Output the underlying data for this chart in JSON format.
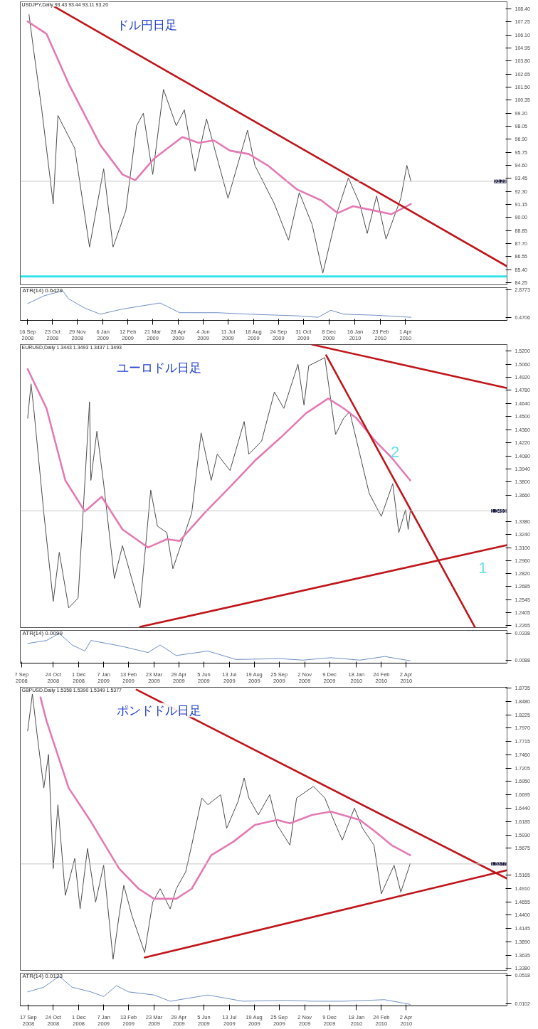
{
  "chart_data": [
    {
      "type": "line",
      "title": "ドル円日足",
      "annotations": [
        "USDJPY,Daily  93.43 93.44 93.11 93.20"
      ],
      "xlim": [
        "2008-09-05",
        "2010-08-30"
      ],
      "ylim": [
        84.07,
        109.03
      ],
      "yticks": [
        {
          "value": 84.25,
          "label": "84.25"
        },
        {
          "value": 85.4,
          "label": "85.40"
        },
        {
          "value": 86.55,
          "label": "86.55"
        },
        {
          "value": 87.7,
          "label": "87.70"
        },
        {
          "value": 88.85,
          "label": "88.85"
        },
        {
          "value": 90.0,
          "label": "90.00"
        },
        {
          "value": 91.15,
          "label": "91.15"
        },
        {
          "value": 92.3,
          "label": "92.30"
        },
        {
          "value": 93.45,
          "label": "93.45"
        },
        {
          "value": 94.6,
          "label": "94.60"
        },
        {
          "value": 95.75,
          "label": "95.75"
        },
        {
          "value": 96.9,
          "label": "96.90"
        },
        {
          "value": 98.05,
          "label": "98.05"
        },
        {
          "value": 99.2,
          "label": "99.20"
        },
        {
          "value": 100.35,
          "label": "100.35"
        },
        {
          "value": 101.5,
          "label": "101.50"
        },
        {
          "value": 102.65,
          "label": "102.65"
        },
        {
          "value": 103.8,
          "label": "103.80"
        },
        {
          "value": 104.95,
          "label": "104.95"
        },
        {
          "value": 106.1,
          "label": "106.10"
        },
        {
          "value": 107.25,
          "label": "107.25"
        },
        {
          "value": 108.4,
          "label": "108.40"
        }
      ],
      "tick_labels": "y",
      "ref_lines": [
        {
          "axis": "y",
          "value": 93.2,
          "label": "93.20",
          "color": "#c8c8c8"
        },
        {
          "axis": "y",
          "value": 84.8,
          "label": null,
          "color": "#33e3ea"
        }
      ],
      "series": [
        {
          "color": "#4d4d4d",
          "x": [
            "2008-09-18",
            "2008-09-25",
            "2008-10-07",
            "2008-10-24",
            "2008-10-31",
            "2008-11-25",
            "2008-12-17",
            "2009-01-07",
            "2009-01-21",
            "2009-02-09",
            "2009-02-25",
            "2009-03-07",
            "2009-03-21",
            "2009-04-06",
            "2009-04-25",
            "2009-05-07",
            "2009-05-23",
            "2009-06-09",
            "2009-06-25",
            "2009-07-11",
            "2009-08-09",
            "2009-08-20",
            "2009-09-18",
            "2009-10-09",
            "2009-10-25",
            "2009-11-13",
            "2009-11-29",
            "2009-12-21",
            "2010-01-06",
            "2010-01-23",
            "2010-02-03",
            "2010-02-17",
            "2010-03-03",
            "2010-03-25",
            "2010-04-03",
            "2010-04-09"
          ],
          "values": [
            107.9,
            104.7,
            99.5,
            91.2,
            99.0,
            96.1,
            87.4,
            94.3,
            87.4,
            90.6,
            98.1,
            99.2,
            93.8,
            101.3,
            98.1,
            99.5,
            94.1,
            98.7,
            95.2,
            91.7,
            97.7,
            94.6,
            91.2,
            88.0,
            92.2,
            89.4,
            85.1,
            90.6,
            93.5,
            91.2,
            88.6,
            91.9,
            88.1,
            91.7,
            94.6,
            93.2
          ]
        },
        {
          "color": "#e47ab4",
          "x": [
            "2008-09-16",
            "2008-10-14",
            "2008-11-16",
            "2009-01-02",
            "2009-02-04",
            "2009-02-23",
            "2009-03-23",
            "2009-05-04",
            "2009-05-28",
            "2009-06-20",
            "2009-07-14",
            "2009-08-11",
            "2009-09-08",
            "2009-10-21",
            "2009-11-27",
            "2009-12-21",
            "2010-01-13",
            "2010-02-15",
            "2010-03-11",
            "2010-04-09"
          ],
          "values": [
            107.3,
            106.2,
            101.8,
            96.4,
            93.8,
            93.3,
            95.2,
            97.1,
            96.6,
            96.8,
            95.9,
            95.6,
            94.6,
            92.5,
            91.5,
            90.4,
            91.0,
            90.6,
            90.3,
            91.2
          ]
        },
        {
          "color": "#c0161b",
          "x": [
            "2008-10-24",
            "2010-08-30"
          ],
          "values": [
            108.66,
            85.7
          ]
        }
      ]
    },
    {
      "type": "line",
      "title": "ATR(14) 0.6429",
      "xlim": [
        "2008-09-05",
        "2010-08-30"
      ],
      "ylim": [
        0.23,
        3.09
      ],
      "yticks": [
        0.4706,
        2.8773
      ],
      "xticks": [
        {
          "value": "2008-09-16",
          "label": "16 Sep 2008"
        },
        {
          "value": "2008-10-23",
          "label": "23 Oct 2008"
        },
        {
          "value": "2008-11-29",
          "label": "29 Nov 2008"
        },
        {
          "value": "2009-01-06",
          "label": "6 Jan 2009"
        },
        {
          "value": "2009-02-12",
          "label": "12 Feb 2009"
        },
        {
          "value": "2009-03-21",
          "label": "21 Mar 2009"
        },
        {
          "value": "2009-04-28",
          "label": "28 Apr 2009"
        },
        {
          "value": "2009-06-04",
          "label": "4 Jun 2009"
        },
        {
          "value": "2009-07-11",
          "label": "11 Jul 2009"
        },
        {
          "value": "2009-08-18",
          "label": "18 Aug 2009"
        },
        {
          "value": "2009-09-24",
          "label": "24 Sep 2009"
        },
        {
          "value": "2009-10-31",
          "label": "31 Oct 2009"
        },
        {
          "value": "2009-12-08",
          "label": "8 Dec 2009"
        },
        {
          "value": "2010-01-16",
          "label": "16 Jan 2010"
        },
        {
          "value": "2010-02-23",
          "label": "23 Feb 2010"
        },
        {
          "value": "2010-04-01",
          "label": "1 Apr 2010"
        }
      ],
      "series": [
        {
          "color": "#6f8fc4",
          "x": [
            "2008-09-16",
            "2008-10-10",
            "2008-11-07",
            "2008-11-16",
            "2008-12-10",
            "2009-01-02",
            "2009-02-04",
            "2009-04-01",
            "2009-04-30",
            "2009-06-25",
            "2009-08-11",
            "2009-10-21",
            "2009-11-22",
            "2009-12-11",
            "2009-12-30",
            "2010-02-15",
            "2010-04-09"
          ],
          "values": [
            1.7,
            2.37,
            2.82,
            2.1,
            1.3,
            0.77,
            1.22,
            1.75,
            0.9,
            0.9,
            0.77,
            0.63,
            0.5,
            1.11,
            0.77,
            0.68,
            0.5
          ]
        }
      ]
    },
    {
      "type": "line",
      "title": "ユーロドル日足",
      "annotations": [
        "EURUSD,Daily  1.3443 1.3493 1.3437 1.3493",
        "1",
        "2"
      ],
      "xlim": [
        "2008-09-05",
        "2010-08-30"
      ],
      "ylim": [
        1.2246,
        1.527
      ],
      "yticks": [
        {
          "value": 1.2265,
          "label": "1.2265"
        },
        {
          "value": 1.2405,
          "label": "1.2405"
        },
        {
          "value": 1.2545,
          "label": "1.2545"
        },
        {
          "value": 1.2685,
          "label": "1.2685"
        },
        {
          "value": 1.282,
          "label": "1.2820"
        },
        {
          "value": 1.296,
          "label": "1.2960"
        },
        {
          "value": 1.31,
          "label": "1.3100"
        },
        {
          "value": 1.324,
          "label": "1.3240"
        },
        {
          "value": 1.338,
          "label": "1.3380"
        },
        {
          "value": 1.366,
          "label": "1.3660"
        },
        {
          "value": 1.38,
          "label": "1.3800"
        },
        {
          "value": 1.394,
          "label": "1.3940"
        },
        {
          "value": 1.408,
          "label": "1.4080"
        },
        {
          "value": 1.422,
          "label": "1.4220"
        },
        {
          "value": 1.436,
          "label": "1.4360"
        },
        {
          "value": 1.45,
          "label": "1.4500"
        },
        {
          "value": 1.464,
          "label": "1.4640"
        },
        {
          "value": 1.478,
          "label": "1.4780"
        },
        {
          "value": 1.492,
          "label": "1.4920"
        },
        {
          "value": 1.506,
          "label": "1.5060"
        },
        {
          "value": 1.52,
          "label": "1.5200"
        }
      ],
      "tick_labels": "y",
      "ref_lines": [
        {
          "axis": "y",
          "value": 1.3493,
          "label": "1.3493",
          "color": "#c8c8c8"
        }
      ],
      "series": [
        {
          "color": "#4d4d4d",
          "x": [
            "2008-09-16",
            "2008-09-21",
            "2008-09-25",
            "2008-10-10",
            "2008-10-24",
            "2008-11-02",
            "2008-11-16",
            "2008-11-30",
            "2008-12-17",
            "2008-12-19",
            "2008-12-28",
            "2009-01-07",
            "2009-01-23",
            "2009-02-04",
            "2009-03-02",
            "2009-03-18",
            "2009-03-28",
            "2009-04-11",
            "2009-04-20",
            "2009-05-18",
            "2009-06-01",
            "2009-06-16",
            "2009-06-25",
            "2009-07-14",
            "2009-08-04",
            "2009-08-11",
            "2009-08-30",
            "2009-09-18",
            "2009-10-02",
            "2009-10-23",
            "2009-11-01",
            "2009-11-08",
            "2009-12-02",
            "2009-12-18",
            "2009-12-30",
            "2010-01-08",
            "2010-01-23",
            "2010-02-06",
            "2010-02-24",
            "2010-03-13",
            "2010-03-22",
            "2010-04-01",
            "2010-04-05",
            "2010-04-08"
          ],
          "values": [
            1.4483,
            1.485,
            1.4588,
            1.347,
            1.2526,
            1.305,
            1.2456,
            1.256,
            1.4658,
            1.3819,
            1.4344,
            1.3784,
            1.277,
            1.312,
            1.2456,
            1.3714,
            1.333,
            1.326,
            1.2875,
            1.347,
            1.4326,
            1.3819,
            1.4099,
            1.3924,
            1.4448,
            1.4099,
            1.4239,
            1.4763,
            1.4588,
            1.506,
            1.4623,
            1.5043,
            1.513,
            1.4309,
            1.4483,
            1.4553,
            1.4099,
            1.3679,
            1.3434,
            1.3784,
            1.326,
            1.3505,
            1.3295,
            1.3487
          ]
        },
        {
          "color": "#e47ab4",
          "x": [
            "2008-09-16",
            "2008-10-14",
            "2008-11-11",
            "2008-12-10",
            "2009-01-04",
            "2009-02-04",
            "2009-03-14",
            "2009-04-11",
            "2009-04-30",
            "2009-06-06",
            "2009-07-14",
            "2009-08-20",
            "2009-09-27",
            "2009-11-04",
            "2009-12-07",
            "2009-12-30",
            "2010-01-18",
            "2010-02-15",
            "2010-03-11",
            "2010-04-08"
          ],
          "values": [
            1.5008,
            1.4588,
            1.3819,
            1.3487,
            1.3644,
            1.3295,
            1.3102,
            1.319,
            1.3172,
            1.347,
            1.3749,
            1.4029,
            1.4274,
            1.4536,
            1.4693,
            1.4588,
            1.4483,
            1.4239,
            1.4064,
            1.3819
          ]
        },
        {
          "color": "#c0161b",
          "x": [
            "2009-11-13",
            "2010-08-30"
          ],
          "values": [
            1.527,
            1.4805
          ]
        },
        {
          "color": "#c0161b",
          "x": [
            "2009-12-04",
            "2010-07-13"
          ],
          "values": [
            1.5155,
            1.2253
          ]
        },
        {
          "color": "#c0161b",
          "x": [
            "2009-03-02",
            "2010-08-30"
          ],
          "values": [
            1.2253,
            1.3127
          ]
        }
      ]
    },
    {
      "type": "line",
      "title": "ATR(14) 0.0099",
      "xlim": [
        "2008-09-05",
        "2010-08-30"
      ],
      "ylim": [
        0.006,
        0.0366
      ],
      "yticks": [
        0.0088,
        0.0338
      ],
      "xticks": [
        {
          "value": "2008-09-07",
          "label": "7 Sep 2008"
        },
        {
          "value": "2008-10-24",
          "label": "24 Oct 2008"
        },
        {
          "value": "2008-12-01",
          "label": "1 Dec 2008"
        },
        {
          "value": "2009-01-07",
          "label": "7 Jan 2009"
        },
        {
          "value": "2009-02-13",
          "label": "13 Feb 2009"
        },
        {
          "value": "2009-03-23",
          "label": "23 Mar 2009"
        },
        {
          "value": "2009-04-29",
          "label": "29 Apr 2009"
        },
        {
          "value": "2009-06-05",
          "label": "5 Jun 2009"
        },
        {
          "value": "2009-07-13",
          "label": "13 Jul 2009"
        },
        {
          "value": "2009-08-19",
          "label": "19 Aug 2009"
        },
        {
          "value": "2009-09-25",
          "label": "25 Sep 2009"
        },
        {
          "value": "2009-11-02",
          "label": "2 Nov 2009"
        },
        {
          "value": "2009-12-09",
          "label": "9 Dec 2009"
        },
        {
          "value": "2010-01-18",
          "label": "18 Jan 2010"
        },
        {
          "value": "2010-02-24",
          "label": "24 Feb 2010"
        },
        {
          "value": "2010-04-02",
          "label": "2 Apr 2010"
        }
      ],
      "series": [
        {
          "color": "#6f8fc4",
          "x": [
            "2008-09-16",
            "2008-10-14",
            "2008-11-02",
            "2008-11-21",
            "2008-12-10",
            "2008-12-19",
            "2009-01-12",
            "2009-02-04",
            "2009-03-14",
            "2009-04-01",
            "2009-04-25",
            "2009-06-11",
            "2009-07-23",
            "2009-09-27",
            "2009-10-30",
            "2009-12-11",
            "2010-01-23",
            "2010-03-01",
            "2010-04-08"
          ],
          "values": [
            0.0244,
            0.0272,
            0.0338,
            0.023,
            0.0173,
            0.0272,
            0.0244,
            0.0216,
            0.0159,
            0.023,
            0.0131,
            0.0173,
            0.0094,
            0.0102,
            0.0088,
            0.0111,
            0.0088,
            0.0122,
            0.0082
          ]
        }
      ]
    },
    {
      "type": "line",
      "title": "ポンドドル日足",
      "annotations": [
        "GBPUSD,Daily  1.5358 1.5390 1.5349 1.5377"
      ],
      "xlim": [
        "2008-09-05",
        "2010-08-30"
      ],
      "ylim": [
        1.3345,
        1.8749
      ],
      "yticks": [
        {
          "value": 1.338,
          "label": "1.3380"
        },
        {
          "value": 1.3635,
          "label": "1.3635"
        },
        {
          "value": 1.389,
          "label": "1.3890"
        },
        {
          "value": 1.4145,
          "label": "1.4145"
        },
        {
          "value": 1.44,
          "label": "1.4400"
        },
        {
          "value": 1.4655,
          "label": "1.4655"
        },
        {
          "value": 1.491,
          "label": "1.4910"
        },
        {
          "value": 1.5165,
          "label": "1.5165"
        },
        {
          "value": 1.5675,
          "label": "1.5675"
        },
        {
          "value": 1.593,
          "label": "1.5930"
        },
        {
          "value": 1.6185,
          "label": "1.6185"
        },
        {
          "value": 1.644,
          "label": "1.6440"
        },
        {
          "value": 1.6695,
          "label": "1.6695"
        },
        {
          "value": 1.695,
          "label": "1.6950"
        },
        {
          "value": 1.7205,
          "label": "1.7205"
        },
        {
          "value": 1.746,
          "label": "1.7460"
        },
        {
          "value": 1.7715,
          "label": "1.7715"
        },
        {
          "value": 1.797,
          "label": "1.7970"
        },
        {
          "value": 1.8225,
          "label": "1.8225"
        },
        {
          "value": 1.848,
          "label": "1.8480"
        },
        {
          "value": 1.8735,
          "label": "1.8735"
        }
      ],
      "tick_labels": "y",
      "ref_lines": [
        {
          "axis": "y",
          "value": 1.5377,
          "label": "1.5377",
          "color": "#c8c8c8"
        }
      ],
      "series": [
        {
          "color": "#4d4d4d",
          "x": [
            "2008-09-16",
            "2008-09-23",
            "2008-09-30",
            "2008-10-10",
            "2008-10-17",
            "2008-10-24",
            "2008-10-31",
            "2008-11-11",
            "2008-11-25",
            "2008-12-03",
            "2008-12-14",
            "2008-12-26",
            "2009-01-07",
            "2009-01-21",
            "2009-01-30",
            "2009-02-06",
            "2009-02-18",
            "2009-03-09",
            "2009-03-21",
            "2009-04-01",
            "2009-04-16",
            "2009-04-25",
            "2009-05-09",
            "2009-05-18",
            "2009-06-02",
            "2009-06-11",
            "2009-06-30",
            "2009-07-09",
            "2009-07-26",
            "2009-08-04",
            "2009-08-11",
            "2009-08-25",
            "2009-09-11",
            "2009-09-22",
            "2009-10-11",
            "2009-10-21",
            "2009-11-15",
            "2009-12-02",
            "2009-12-16",
            "2009-12-28",
            "2010-01-15",
            "2010-01-27",
            "2010-02-13",
            "2010-02-24",
            "2010-03-15",
            "2010-03-25",
            "2010-04-08"
          ],
          "values": [
            1.7916,
            1.8621,
            1.7852,
            1.6826,
            1.7467,
            1.5288,
            1.6506,
            1.4775,
            1.548,
            1.4519,
            1.5672,
            1.4647,
            1.5352,
            1.3557,
            1.4391,
            1.4968,
            1.4391,
            1.3685,
            1.4647,
            1.4903,
            1.4519,
            1.4903,
            1.5224,
            1.5737,
            1.6634,
            1.6506,
            1.6698,
            1.6057,
            1.657,
            1.7018,
            1.6634,
            1.6313,
            1.6698,
            1.6121,
            1.5737,
            1.6634,
            1.6858,
            1.6634,
            1.6185,
            1.5833,
            1.6442,
            1.6057,
            1.5737,
            1.4807,
            1.5352,
            1.4839,
            1.5384
          ]
        },
        {
          "color": "#e47ab4",
          "x": [
            "2008-10-05",
            "2008-10-14",
            "2008-11-16",
            "2008-12-19",
            "2009-01-30",
            "2009-02-28",
            "2009-03-23",
            "2009-04-25",
            "2009-05-18",
            "2009-06-16",
            "2009-07-19",
            "2009-08-20",
            "2009-09-22",
            "2009-10-11",
            "2009-11-13",
            "2009-12-11",
            "2010-01-23",
            "2010-02-15",
            "2010-03-11",
            "2010-04-08"
          ],
          "values": [
            1.8557,
            1.8108,
            1.6826,
            1.6185,
            1.5288,
            1.4903,
            1.4711,
            1.4711,
            1.4903,
            1.5544,
            1.5801,
            1.6121,
            1.6217,
            1.6153,
            1.6313,
            1.6377,
            1.6217,
            1.5993,
            1.5737,
            1.5544
          ]
        },
        {
          "color": "#c0161b",
          "x": [
            "2009-02-25",
            "2010-08-30"
          ],
          "values": [
            1.8703,
            1.5096
          ]
        },
        {
          "color": "#c0161b",
          "x": [
            "2009-03-09",
            "2010-08-30"
          ],
          "values": [
            1.3589,
            1.5256
          ]
        }
      ]
    },
    {
      "type": "line",
      "title": "ATR(14) 0.0123",
      "xlim": [
        "2008-09-05",
        "2010-08-30"
      ],
      "ylim": [
        0.0065,
        0.0555
      ],
      "yticks": [
        0.0102,
        0.0518
      ],
      "xticks": [
        {
          "value": "2008-09-17",
          "label": "17 Sep 2008"
        },
        {
          "value": "2008-10-24",
          "label": "24 Oct 2008"
        },
        {
          "value": "2008-12-01",
          "label": "1 Dec 2008"
        },
        {
          "value": "2009-01-07",
          "label": "7 Jan 2009"
        },
        {
          "value": "2009-02-13",
          "label": "13 Feb 2009"
        },
        {
          "value": "2009-03-23",
          "label": "23 Mar 2009"
        },
        {
          "value": "2009-04-29",
          "label": "29 Apr 2009"
        },
        {
          "value": "2009-06-05",
          "label": "5 Jun 2009"
        },
        {
          "value": "2009-07-13",
          "label": "13 Jul 2009"
        },
        {
          "value": "2009-08-19",
          "label": "19 Aug 2009"
        },
        {
          "value": "2009-09-25",
          "label": "25 Sep 2009"
        },
        {
          "value": "2009-11-02",
          "label": "2 Nov 2009"
        },
        {
          "value": "2009-12-09",
          "label": "9 Dec 2009"
        },
        {
          "value": "2010-01-18",
          "label": "18 Jan 2010"
        },
        {
          "value": "2010-02-24",
          "label": "24 Feb 2010"
        },
        {
          "value": "2010-04-02",
          "label": "2 Apr 2010"
        }
      ],
      "series": [
        {
          "color": "#6f8fc4",
          "x": [
            "2008-09-16",
            "2008-10-10",
            "2008-11-02",
            "2008-11-21",
            "2008-12-19",
            "2009-01-07",
            "2009-01-26",
            "2009-02-13",
            "2009-03-23",
            "2009-04-16",
            "2009-06-11",
            "2009-08-02",
            "2009-10-06",
            "2009-11-13",
            "2009-12-30",
            "2010-03-01",
            "2010-04-08"
          ],
          "values": [
            0.0275,
            0.0345,
            0.0509,
            0.0345,
            0.0275,
            0.0205,
            0.0369,
            0.0275,
            0.0228,
            0.0135,
            0.0228,
            0.0135,
            0.0149,
            0.0135,
            0.0135,
            0.0158,
            0.0088
          ]
        }
      ]
    }
  ]
}
